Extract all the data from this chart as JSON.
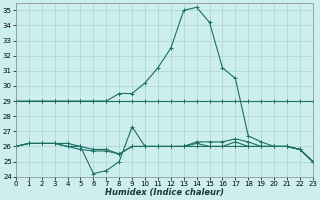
{
  "xlabel": "Humidex (Indice chaleur)",
  "xlim": [
    0,
    23
  ],
  "ylim": [
    24,
    35.5
  ],
  "yticks": [
    24,
    25,
    26,
    27,
    28,
    29,
    30,
    31,
    32,
    33,
    34,
    35
  ],
  "xticks": [
    0,
    1,
    2,
    3,
    4,
    5,
    6,
    7,
    8,
    9,
    10,
    11,
    12,
    13,
    14,
    15,
    16,
    17,
    18,
    19,
    20,
    21,
    22,
    23
  ],
  "bg_color": "#cceeed",
  "grid_color": "#aad5d0",
  "line_color": "#1a6e65",
  "lines": [
    {
      "x": [
        0,
        1,
        2,
        3,
        4,
        5,
        6,
        7,
        8,
        9,
        10,
        11,
        12,
        13,
        14,
        15,
        16,
        17,
        18,
        19,
        20,
        21,
        22,
        23
      ],
      "y": [
        29,
        29,
        29,
        29,
        29,
        29,
        29,
        29,
        29,
        29,
        29,
        29,
        29,
        29,
        29,
        29,
        29,
        29,
        29,
        29,
        29,
        29,
        29,
        29
      ]
    },
    {
      "x": [
        0,
        1,
        2,
        3,
        4,
        5,
        6,
        7,
        8,
        9,
        10,
        11,
        12,
        13,
        14,
        15,
        16,
        17,
        18,
        19,
        20,
        21,
        22,
        23
      ],
      "y": [
        29,
        29,
        29,
        29,
        29,
        29,
        29,
        29,
        29.5,
        29.5,
        30.2,
        31.2,
        32.5,
        35.0,
        35.2,
        34.2,
        31.2,
        30.5,
        26.7,
        26.3,
        26.0,
        26.0,
        25.8,
        25.0
      ]
    },
    {
      "x": [
        0,
        1,
        2,
        3,
        4,
        5,
        6,
        7,
        8,
        9,
        10,
        11,
        12,
        13,
        14,
        15,
        16,
        17,
        18,
        19,
        20,
        21,
        22,
        23
      ],
      "y": [
        26.0,
        26.2,
        26.2,
        26.2,
        26.0,
        26.0,
        24.2,
        24.4,
        25.0,
        27.3,
        26.0,
        26.0,
        26.0,
        26.0,
        26.3,
        26.3,
        26.3,
        26.5,
        26.3,
        26.0,
        26.0,
        26.0,
        25.8,
        25.0
      ]
    },
    {
      "x": [
        0,
        1,
        2,
        3,
        4,
        5,
        6,
        7,
        8,
        9,
        10,
        11,
        12,
        13,
        14,
        15,
        16,
        17,
        18,
        19,
        20,
        21,
        22,
        23
      ],
      "y": [
        26.0,
        26.2,
        26.2,
        26.2,
        26.0,
        25.8,
        25.7,
        25.7,
        25.5,
        26.0,
        26.0,
        26.0,
        26.0,
        26.0,
        26.2,
        26.0,
        26.0,
        26.3,
        26.0,
        26.0,
        26.0,
        26.0,
        25.8,
        25.0
      ]
    },
    {
      "x": [
        0,
        1,
        2,
        3,
        4,
        5,
        6,
        7,
        8,
        9,
        10,
        11,
        12,
        13,
        14,
        15,
        16,
        17,
        18,
        19,
        20,
        21,
        22,
        23
      ],
      "y": [
        26.0,
        26.2,
        26.2,
        26.2,
        26.2,
        26.0,
        25.8,
        25.8,
        25.5,
        26.0,
        26.0,
        26.0,
        26.0,
        26.0,
        26.0,
        26.0,
        26.0,
        26.0,
        26.0,
        26.0,
        26.0,
        26.0,
        25.8,
        25.0
      ]
    }
  ]
}
